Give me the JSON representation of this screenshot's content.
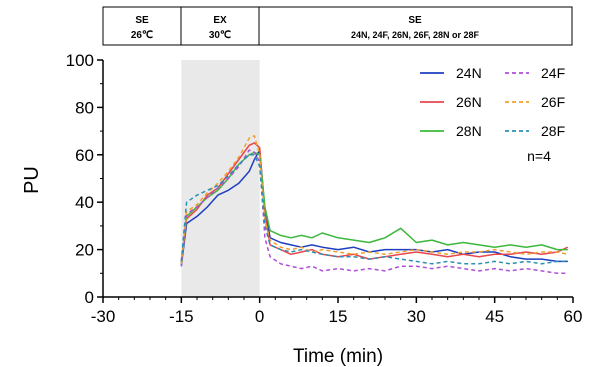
{
  "phases": [
    {
      "name": "SE",
      "sub": "26℃"
    },
    {
      "name": "EX",
      "sub": "30℃"
    },
    {
      "name": "SE",
      "sub": "24N, 24F, 26N, 26F, 28N or 28F"
    }
  ],
  "colors": {
    "24N": "#1f3fbf",
    "26N": "#e8474b",
    "28N": "#3cb83c",
    "24F": "#b04fd8",
    "26F": "#f0a030",
    "28F": "#2a8fb5",
    "shade": "#e9e9e9"
  },
  "chart_data": {
    "type": "line",
    "title": "",
    "xlabel": "Time (min)",
    "ylabel": "PU",
    "xlim": [
      -30,
      60
    ],
    "ylim": [
      0,
      100
    ],
    "xticks": [
      -30,
      -15,
      0,
      15,
      30,
      45,
      60
    ],
    "yticks": [
      0,
      20,
      40,
      60,
      80,
      100
    ],
    "shaded_region": [
      -15,
      0
    ],
    "annotation": "n=4",
    "legend_position": "top-right",
    "series": [
      {
        "name": "24N",
        "style": "solid",
        "x": [
          -15,
          -14,
          -12,
          -10,
          -8,
          -6,
          -4,
          -2,
          -1,
          0,
          1,
          2,
          4,
          6,
          8,
          10,
          12,
          15,
          18,
          21,
          24,
          27,
          30,
          33,
          36,
          39,
          42,
          45,
          48,
          51,
          54,
          57,
          59
        ],
        "y": [
          13,
          31,
          34,
          38,
          43,
          45,
          48,
          53,
          58,
          62,
          37,
          25,
          23,
          22,
          21,
          22,
          21,
          20,
          21,
          19,
          20,
          20,
          20,
          19,
          20,
          18,
          19,
          19,
          17,
          16,
          16,
          15,
          15
        ]
      },
      {
        "name": "26N",
        "style": "solid",
        "x": [
          -15,
          -14,
          -12,
          -10,
          -8,
          -6,
          -4,
          -2,
          -1,
          0,
          1,
          2,
          4,
          6,
          8,
          10,
          12,
          15,
          18,
          21,
          24,
          27,
          30,
          33,
          36,
          39,
          42,
          45,
          48,
          51,
          54,
          57,
          59
        ],
        "y": [
          15,
          33,
          37,
          43,
          46,
          52,
          58,
          64,
          65,
          63,
          35,
          22,
          20,
          18,
          19,
          20,
          18,
          17,
          18,
          16,
          17,
          18,
          19,
          18,
          17,
          18,
          17,
          18,
          18,
          19,
          18,
          19,
          21
        ]
      },
      {
        "name": "28N",
        "style": "solid",
        "x": [
          -15,
          -14,
          -12,
          -10,
          -8,
          -6,
          -4,
          -2,
          -1,
          0,
          1,
          2,
          4,
          6,
          8,
          10,
          12,
          15,
          18,
          21,
          24,
          27,
          30,
          33,
          36,
          39,
          42,
          45,
          48,
          51,
          54,
          57,
          59
        ],
        "y": [
          14,
          34,
          38,
          42,
          45,
          50,
          56,
          60,
          61,
          60,
          38,
          28,
          26,
          25,
          26,
          25,
          27,
          25,
          24,
          23,
          25,
          29,
          23,
          24,
          22,
          23,
          22,
          21,
          22,
          21,
          22,
          20,
          20
        ]
      },
      {
        "name": "24F",
        "style": "dash",
        "x": [
          -15,
          -14,
          -12,
          -10,
          -8,
          -6,
          -4,
          -2,
          -1,
          0,
          1,
          2,
          4,
          6,
          8,
          10,
          12,
          15,
          18,
          21,
          24,
          27,
          30,
          33,
          36,
          39,
          42,
          45,
          48,
          51,
          54,
          57,
          59
        ],
        "y": [
          13,
          35,
          38,
          42,
          46,
          50,
          55,
          62,
          61,
          57,
          25,
          17,
          14,
          13,
          12,
          13,
          11,
          12,
          11,
          12,
          11,
          13,
          13,
          12,
          13,
          12,
          11,
          12,
          11,
          12,
          11,
          10,
          10
        ]
      },
      {
        "name": "26F",
        "style": "dash",
        "x": [
          -15,
          -14,
          -12,
          -10,
          -8,
          -6,
          -4,
          -2,
          -1,
          0,
          1,
          2,
          4,
          6,
          8,
          10,
          12,
          15,
          18,
          21,
          24,
          27,
          30,
          33,
          36,
          39,
          42,
          45,
          48,
          51,
          54,
          57,
          59
        ],
        "y": [
          14,
          36,
          39,
          44,
          48,
          53,
          59,
          67,
          68,
          60,
          32,
          24,
          21,
          20,
          21,
          19,
          20,
          19,
          18,
          19,
          18,
          19,
          20,
          19,
          18,
          19,
          19,
          20,
          19,
          18,
          19,
          19,
          18
        ]
      },
      {
        "name": "28F",
        "style": "dash",
        "x": [
          -15,
          -14,
          -12,
          -10,
          -8,
          -6,
          -4,
          -2,
          -1,
          0,
          1,
          2,
          4,
          6,
          8,
          10,
          12,
          15,
          18,
          21,
          24,
          27,
          30,
          33,
          36,
          39,
          42,
          45,
          48,
          51,
          54,
          57,
          59
        ],
        "y": [
          15,
          40,
          43,
          45,
          47,
          51,
          56,
          60,
          60,
          55,
          30,
          22,
          20,
          19,
          20,
          19,
          18,
          17,
          17,
          16,
          17,
          16,
          15,
          14,
          15,
          14,
          14,
          15,
          14,
          15,
          14,
          15,
          15
        ]
      }
    ]
  }
}
